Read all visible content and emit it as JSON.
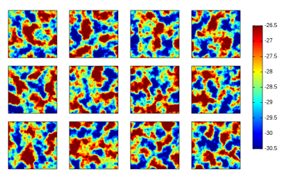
{
  "chart_data": {
    "type": "heatmap-grid",
    "colorbar": {
      "clim": [
        -30.5,
        -26.5
      ],
      "ticks": [
        -26.5,
        -27,
        -27.5,
        -28,
        -28.5,
        -29,
        -29.5,
        -30,
        -30.5
      ],
      "colormap": [
        "#00008f",
        "#0000ff",
        "#0080ff",
        "#00ffff",
        "#80ff80",
        "#ffff00",
        "#ff8000",
        "#ff0000",
        "#800000"
      ]
    }
  }
}
